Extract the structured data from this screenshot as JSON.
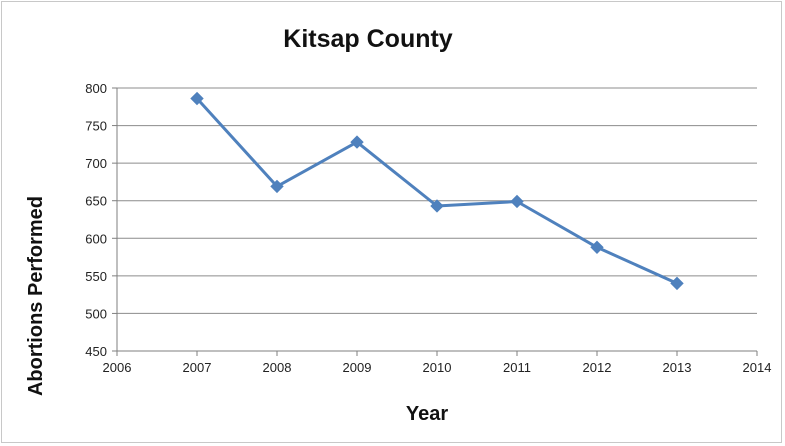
{
  "chart_data": {
    "type": "line",
    "title": "Kitsap County",
    "xlabel": "Year",
    "ylabel": "Abortions Performed",
    "xlim": [
      2006,
      2014
    ],
    "ylim": [
      450,
      800
    ],
    "x_ticks": [
      2006,
      2007,
      2008,
      2009,
      2010,
      2011,
      2012,
      2013,
      2014
    ],
    "y_ticks": [
      450,
      500,
      550,
      600,
      650,
      700,
      750,
      800
    ],
    "grid": "horizontal",
    "legend": "none",
    "series": [
      {
        "color": "#4f81bd",
        "marker": "diamond",
        "x": [
          2007,
          2008,
          2009,
          2010,
          2011,
          2012,
          2013
        ],
        "y": [
          786,
          669,
          728,
          643,
          649,
          588,
          540
        ]
      }
    ]
  }
}
